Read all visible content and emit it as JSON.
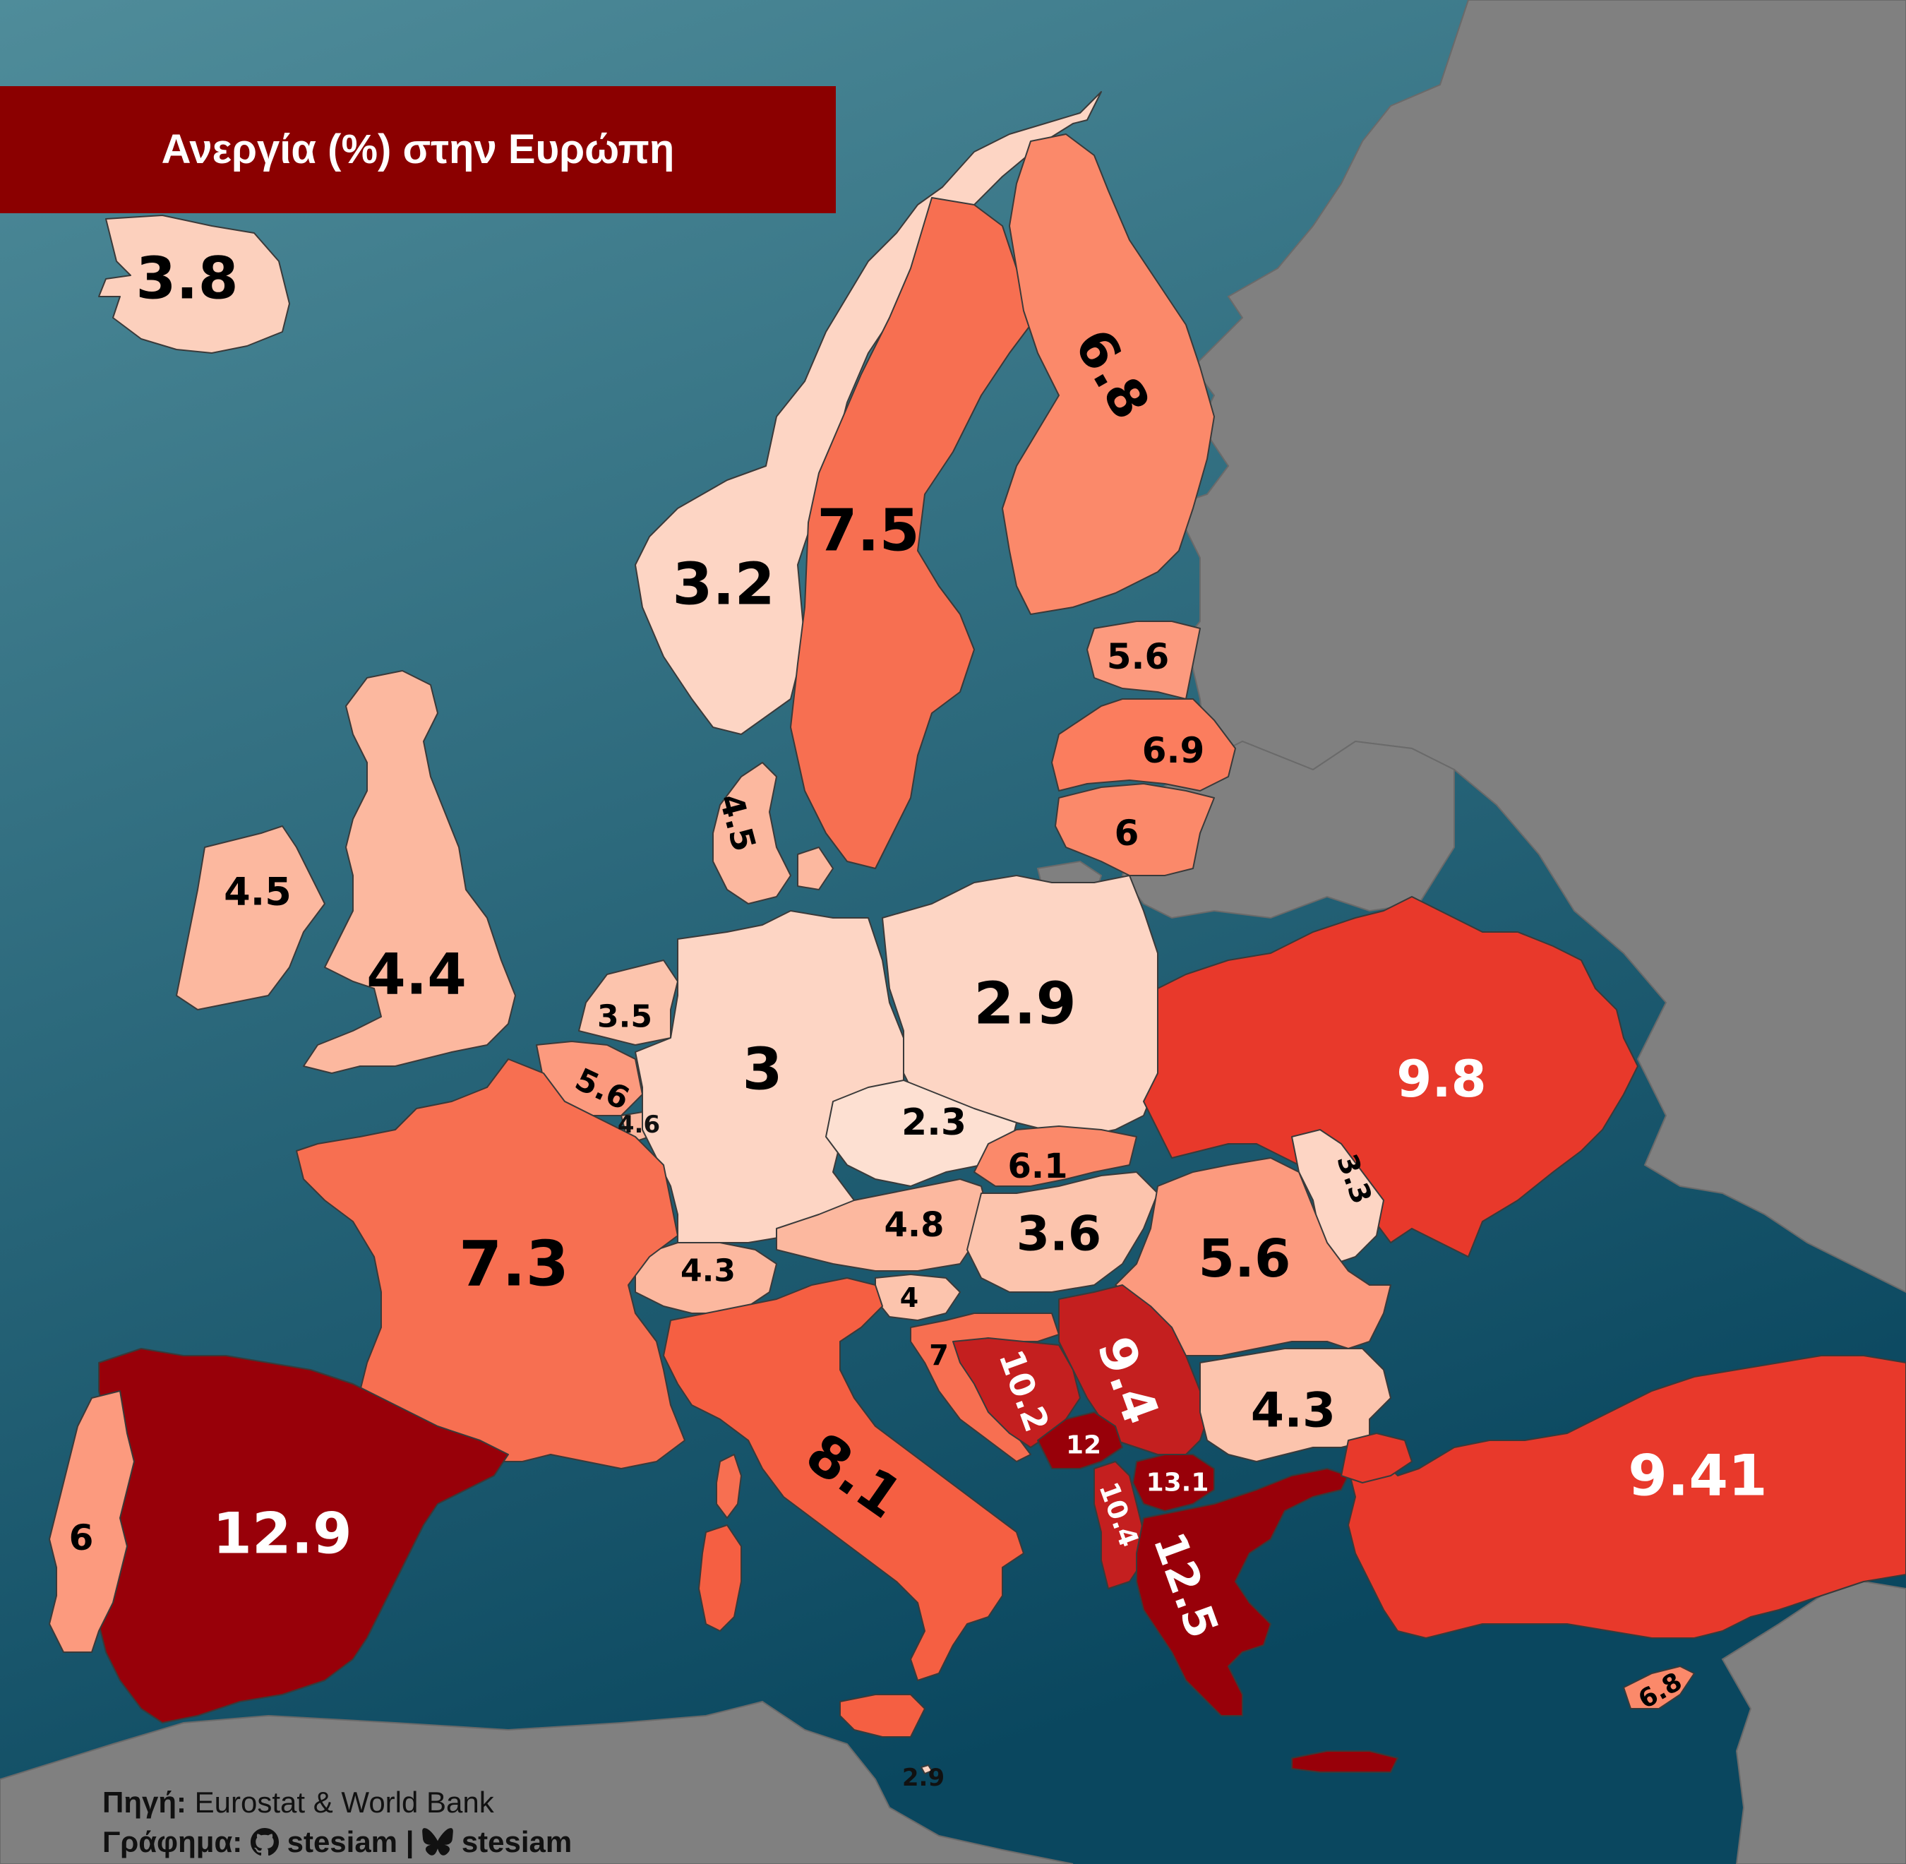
{
  "title": "Ανεργία (%) στην Ευρώπη",
  "colors": {
    "sea_top": "#4c8796",
    "sea_bottom": "#0b4a62",
    "non_europe_land": "#808080",
    "title_bg": "#8b0000",
    "very_low": "#fdd5c4",
    "low": "#fcb89f",
    "mid_low": "#fc9a7e",
    "mid": "#f76f51",
    "high": "#e8392b",
    "very_high": "#c41f1f",
    "highest": "#980009"
  },
  "countries": [
    {
      "name": "Iceland",
      "value": "3.8"
    },
    {
      "name": "Norway",
      "value": "3.2"
    },
    {
      "name": "Sweden",
      "value": "7.5"
    },
    {
      "name": "Finland",
      "value": "6.8"
    },
    {
      "name": "Estonia",
      "value": "5.6"
    },
    {
      "name": "Latvia",
      "value": "6.9"
    },
    {
      "name": "Lithuania",
      "value": "6"
    },
    {
      "name": "Denmark",
      "value": "4.5"
    },
    {
      "name": "Ireland",
      "value": "4.5"
    },
    {
      "name": "United Kingdom",
      "value": "4.4"
    },
    {
      "name": "Netherlands",
      "value": "3.5"
    },
    {
      "name": "Belgium",
      "value": "5.6"
    },
    {
      "name": "Luxembourg",
      "value": "4.6"
    },
    {
      "name": "Germany",
      "value": "3"
    },
    {
      "name": "Poland",
      "value": "2.9"
    },
    {
      "name": "Czechia",
      "value": "2.3"
    },
    {
      "name": "Slovakia",
      "value": "6.1"
    },
    {
      "name": "Austria",
      "value": "4.8"
    },
    {
      "name": "Hungary",
      "value": "3.6"
    },
    {
      "name": "Switzerland",
      "value": "4.3"
    },
    {
      "name": "France",
      "value": "7.3"
    },
    {
      "name": "Ukraine",
      "value": "9.8"
    },
    {
      "name": "Moldova",
      "value": "3.3"
    },
    {
      "name": "Romania",
      "value": "5.6"
    },
    {
      "name": "Slovenia",
      "value": "4"
    },
    {
      "name": "Croatia",
      "value": "7"
    },
    {
      "name": "Bosnia and Herzegovina",
      "value": "10.2"
    },
    {
      "name": "Serbia",
      "value": "9.4"
    },
    {
      "name": "Bulgaria",
      "value": "4.3"
    },
    {
      "name": "Montenegro",
      "value": "12"
    },
    {
      "name": "North Macedonia",
      "value": "13.1"
    },
    {
      "name": "Albania",
      "value": "10.4"
    },
    {
      "name": "Greece",
      "value": "12.5"
    },
    {
      "name": "Turkey",
      "value": "9.41"
    },
    {
      "name": "Italy",
      "value": "8.1"
    },
    {
      "name": "Spain",
      "value": "12.9"
    },
    {
      "name": "Portugal",
      "value": "6"
    },
    {
      "name": "Cyprus",
      "value": "6.8"
    },
    {
      "name": "Malta",
      "value": "2.9"
    }
  ],
  "footer": {
    "source_label": "Πηγή:",
    "source_text": "Eurostat & World Bank",
    "credit_label": "Γράφημα:",
    "github_handle": "stesiam",
    "separator": "|",
    "bluesky_handle": "stesiam"
  }
}
